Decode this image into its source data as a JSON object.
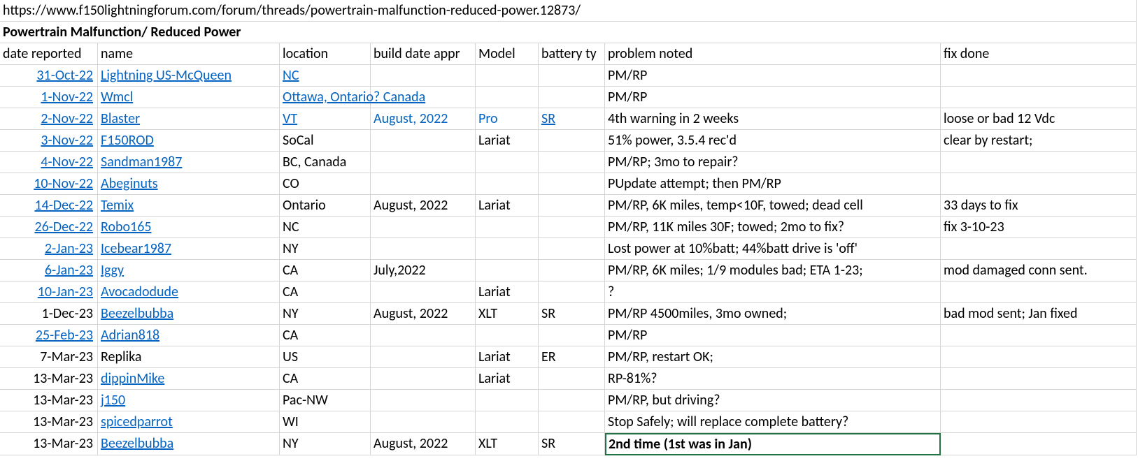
{
  "url": "https://www.f150lightningforum.com/forum/threads/powertrain-malfunction-reduced-power.12873/",
  "title": "Powertrain Malfunction/ Reduced Power",
  "headers": {
    "date": "date reported",
    "name": "name",
    "location": "location",
    "build": "build date appr",
    "model": "Model",
    "battery": "battery ty",
    "problem": "problem noted",
    "fix": "fix done"
  },
  "rows": [
    {
      "date": "31-Oct-22",
      "date_link": true,
      "name": "Lightning US-McQueen",
      "name_link": true,
      "location": "NC",
      "loc_link": true,
      "build": "",
      "build_link": false,
      "model": "",
      "model_link": false,
      "battery": "",
      "batt_link": false,
      "problem": "PM/RP",
      "fix": ""
    },
    {
      "date": "1-Nov-22",
      "date_link": true,
      "name": "Wmcl",
      "name_link": true,
      "location": "Ottawa, Ontario? Canada",
      "loc_link": true,
      "build": "",
      "build_link": false,
      "model": "",
      "model_link": false,
      "battery": "",
      "batt_link": false,
      "problem": "PM/RP",
      "fix": ""
    },
    {
      "date": "2-Nov-22",
      "date_link": true,
      "name": "Blaster",
      "name_link": true,
      "location": "VT",
      "loc_link": true,
      "build": "August, 2022",
      "build_link": true,
      "model": "Pro",
      "model_link": true,
      "battery": "SR",
      "batt_link": true,
      "battery_underline": true,
      "problem": "4th warning in 2 weeks",
      "fix": "loose or bad 12 Vdc"
    },
    {
      "date": "3-Nov-22",
      "date_link": true,
      "name": "F150ROD",
      "name_link": true,
      "location": "SoCal",
      "loc_link": false,
      "build": "",
      "build_link": false,
      "model": "Lariat",
      "model_link": false,
      "battery": "",
      "batt_link": false,
      "problem": "51% power, 3.5.4 rec'd",
      "fix": "clear by restart;"
    },
    {
      "date": "4-Nov-22",
      "date_link": true,
      "name": "Sandman1987",
      "name_link": true,
      "location": "BC, Canada",
      "loc_link": false,
      "build": "",
      "build_link": false,
      "model": "",
      "model_link": false,
      "battery": "",
      "batt_link": false,
      "problem": "PM/RP; 3mo to repair?",
      "fix": ""
    },
    {
      "date": "10-Nov-22",
      "date_link": true,
      "name": "Abeginuts",
      "name_link": true,
      "location": "CO",
      "loc_link": false,
      "build": "",
      "build_link": false,
      "model": "",
      "model_link": false,
      "battery": "",
      "batt_link": false,
      "problem": "PUpdate attempt; then PM/RP",
      "fix": ""
    },
    {
      "date": "14-Dec-22",
      "date_link": true,
      "name": "Temix",
      "name_link": true,
      "location": "Ontario",
      "loc_link": false,
      "build": "August, 2022",
      "build_link": false,
      "model": "Lariat",
      "model_link": false,
      "battery": "",
      "batt_link": false,
      "problem": "PM/RP, 6K miles, temp<10F, towed; dead cell",
      "fix": "33 days to fix"
    },
    {
      "date": "26-Dec-22",
      "date_link": true,
      "name": "Robo165",
      "name_link": true,
      "location": "NC",
      "loc_link": false,
      "build": "",
      "build_link": false,
      "model": "",
      "model_link": false,
      "battery": "",
      "batt_link": false,
      "problem": "PM/RP, 11K miles 30F; towed; 2mo to fix?",
      "fix": "fix 3-10-23"
    },
    {
      "date": "2-Jan-23",
      "date_link": true,
      "name": "Icebear1987",
      "name_link": true,
      "location": "NY",
      "loc_link": false,
      "build": "",
      "build_link": false,
      "model": "",
      "model_link": false,
      "battery": "",
      "batt_link": false,
      "problem": "Lost power at 10%batt; 44%batt drive is 'off'",
      "fix": ""
    },
    {
      "date": "6-Jan-23",
      "date_link": true,
      "name": "Iggy",
      "name_link": true,
      "location": "CA",
      "loc_link": false,
      "build": "July,2022",
      "build_link": false,
      "model": "",
      "model_link": false,
      "battery": "",
      "batt_link": false,
      "problem": "PM/RP, 6K miles; 1/9 modules bad; ETA 1-23;",
      "fix": "mod damaged conn sent."
    },
    {
      "date": "10-Jan-23",
      "date_link": true,
      "name": "Avocadodude",
      "name_link": true,
      "location": "CA",
      "loc_link": false,
      "build": "",
      "build_link": false,
      "model": "Lariat",
      "model_link": false,
      "battery": "",
      "batt_link": false,
      "problem": "?",
      "fix": ""
    },
    {
      "date": "1-Dec-23",
      "date_link": false,
      "name": "Beezelbubba",
      "name_link": true,
      "location": "NY",
      "loc_link": false,
      "build": "August, 2022",
      "build_link": false,
      "model": "XLT",
      "model_link": false,
      "battery": "SR",
      "batt_link": false,
      "problem": "PM/RP 4500miles, 3mo owned;",
      "fix": "bad mod sent; Jan fixed"
    },
    {
      "date": "25-Feb-23",
      "date_link": true,
      "name": "Adrian818",
      "name_link": true,
      "location": "CA",
      "loc_link": false,
      "build": "",
      "build_link": false,
      "model": "",
      "model_link": false,
      "battery": "",
      "batt_link": false,
      "problem": "PM/RP",
      "fix": ""
    },
    {
      "date": "7-Mar-23",
      "date_link": false,
      "name": "Replika",
      "name_link": false,
      "location": "US",
      "loc_link": false,
      "build": "",
      "build_link": false,
      "model": "Lariat",
      "model_link": false,
      "battery": "ER",
      "batt_link": false,
      "problem": "PM/RP, restart OK;",
      "fix": ""
    },
    {
      "date": "13-Mar-23",
      "date_link": false,
      "name": "dippinMike",
      "name_link": true,
      "location": "CA",
      "loc_link": false,
      "build": "",
      "build_link": false,
      "model": "Lariat",
      "model_link": false,
      "battery": "",
      "batt_link": false,
      "problem": "RP-81%?",
      "fix": ""
    },
    {
      "date": "13-Mar-23",
      "date_link": false,
      "name": "j150",
      "name_link": true,
      "location": "Pac-NW",
      "loc_link": false,
      "build": "",
      "build_link": false,
      "model": "",
      "model_link": false,
      "battery": "",
      "batt_link": false,
      "problem": "PM/RP, but driving?",
      "fix": ""
    },
    {
      "date": "13-Mar-23",
      "date_link": false,
      "name": "spicedparrot",
      "name_link": true,
      "location": "WI",
      "loc_link": false,
      "build": "",
      "build_link": false,
      "model": "",
      "model_link": false,
      "battery": "",
      "batt_link": false,
      "problem": "Stop Safely; will replace complete battery?",
      "fix": ""
    },
    {
      "date": "13-Mar-23",
      "date_link": false,
      "name": "Beezelbubba",
      "name_link": true,
      "location": "NY",
      "loc_link": false,
      "build": "August, 2022",
      "build_link": false,
      "model": "XLT",
      "model_link": false,
      "battery": "SR",
      "batt_link": false,
      "problem": "2nd time (1st was in Jan)",
      "fix": "",
      "selected": true
    }
  ],
  "colors": {
    "link": "#0563c1",
    "grid": "#d4d4d4",
    "selection_border": "#217346",
    "text": "#000000",
    "background": "#ffffff"
  }
}
